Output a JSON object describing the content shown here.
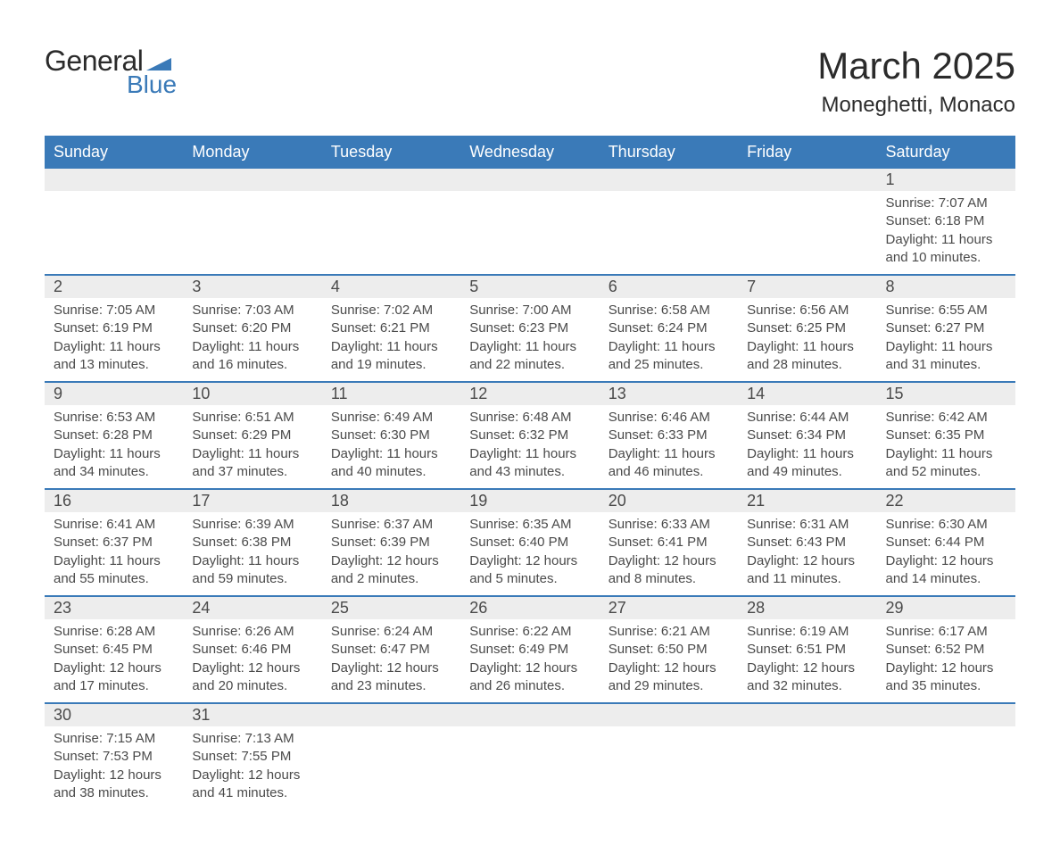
{
  "brand": {
    "word1": "General",
    "word2": "Blue",
    "shape_color": "#3a7ab8"
  },
  "title": "March 2025",
  "location": "Moneghetti, Monaco",
  "header_bg": "#3a7ab8",
  "header_text_color": "#ffffff",
  "row_stripe_bg": "#ededed",
  "border_color": "#3a7ab8",
  "text_color": "#4a4a4a",
  "days_of_week": [
    "Sunday",
    "Monday",
    "Tuesday",
    "Wednesday",
    "Thursday",
    "Friday",
    "Saturday"
  ],
  "weeks": [
    [
      null,
      null,
      null,
      null,
      null,
      null,
      {
        "n": "1",
        "sunrise": "Sunrise: 7:07 AM",
        "sunset": "Sunset: 6:18 PM",
        "daylight1": "Daylight: 11 hours",
        "daylight2": "and 10 minutes."
      }
    ],
    [
      {
        "n": "2",
        "sunrise": "Sunrise: 7:05 AM",
        "sunset": "Sunset: 6:19 PM",
        "daylight1": "Daylight: 11 hours",
        "daylight2": "and 13 minutes."
      },
      {
        "n": "3",
        "sunrise": "Sunrise: 7:03 AM",
        "sunset": "Sunset: 6:20 PM",
        "daylight1": "Daylight: 11 hours",
        "daylight2": "and 16 minutes."
      },
      {
        "n": "4",
        "sunrise": "Sunrise: 7:02 AM",
        "sunset": "Sunset: 6:21 PM",
        "daylight1": "Daylight: 11 hours",
        "daylight2": "and 19 minutes."
      },
      {
        "n": "5",
        "sunrise": "Sunrise: 7:00 AM",
        "sunset": "Sunset: 6:23 PM",
        "daylight1": "Daylight: 11 hours",
        "daylight2": "and 22 minutes."
      },
      {
        "n": "6",
        "sunrise": "Sunrise: 6:58 AM",
        "sunset": "Sunset: 6:24 PM",
        "daylight1": "Daylight: 11 hours",
        "daylight2": "and 25 minutes."
      },
      {
        "n": "7",
        "sunrise": "Sunrise: 6:56 AM",
        "sunset": "Sunset: 6:25 PM",
        "daylight1": "Daylight: 11 hours",
        "daylight2": "and 28 minutes."
      },
      {
        "n": "8",
        "sunrise": "Sunrise: 6:55 AM",
        "sunset": "Sunset: 6:27 PM",
        "daylight1": "Daylight: 11 hours",
        "daylight2": "and 31 minutes."
      }
    ],
    [
      {
        "n": "9",
        "sunrise": "Sunrise: 6:53 AM",
        "sunset": "Sunset: 6:28 PM",
        "daylight1": "Daylight: 11 hours",
        "daylight2": "and 34 minutes."
      },
      {
        "n": "10",
        "sunrise": "Sunrise: 6:51 AM",
        "sunset": "Sunset: 6:29 PM",
        "daylight1": "Daylight: 11 hours",
        "daylight2": "and 37 minutes."
      },
      {
        "n": "11",
        "sunrise": "Sunrise: 6:49 AM",
        "sunset": "Sunset: 6:30 PM",
        "daylight1": "Daylight: 11 hours",
        "daylight2": "and 40 minutes."
      },
      {
        "n": "12",
        "sunrise": "Sunrise: 6:48 AM",
        "sunset": "Sunset: 6:32 PM",
        "daylight1": "Daylight: 11 hours",
        "daylight2": "and 43 minutes."
      },
      {
        "n": "13",
        "sunrise": "Sunrise: 6:46 AM",
        "sunset": "Sunset: 6:33 PM",
        "daylight1": "Daylight: 11 hours",
        "daylight2": "and 46 minutes."
      },
      {
        "n": "14",
        "sunrise": "Sunrise: 6:44 AM",
        "sunset": "Sunset: 6:34 PM",
        "daylight1": "Daylight: 11 hours",
        "daylight2": "and 49 minutes."
      },
      {
        "n": "15",
        "sunrise": "Sunrise: 6:42 AM",
        "sunset": "Sunset: 6:35 PM",
        "daylight1": "Daylight: 11 hours",
        "daylight2": "and 52 minutes."
      }
    ],
    [
      {
        "n": "16",
        "sunrise": "Sunrise: 6:41 AM",
        "sunset": "Sunset: 6:37 PM",
        "daylight1": "Daylight: 11 hours",
        "daylight2": "and 55 minutes."
      },
      {
        "n": "17",
        "sunrise": "Sunrise: 6:39 AM",
        "sunset": "Sunset: 6:38 PM",
        "daylight1": "Daylight: 11 hours",
        "daylight2": "and 59 minutes."
      },
      {
        "n": "18",
        "sunrise": "Sunrise: 6:37 AM",
        "sunset": "Sunset: 6:39 PM",
        "daylight1": "Daylight: 12 hours",
        "daylight2": "and 2 minutes."
      },
      {
        "n": "19",
        "sunrise": "Sunrise: 6:35 AM",
        "sunset": "Sunset: 6:40 PM",
        "daylight1": "Daylight: 12 hours",
        "daylight2": "and 5 minutes."
      },
      {
        "n": "20",
        "sunrise": "Sunrise: 6:33 AM",
        "sunset": "Sunset: 6:41 PM",
        "daylight1": "Daylight: 12 hours",
        "daylight2": "and 8 minutes."
      },
      {
        "n": "21",
        "sunrise": "Sunrise: 6:31 AM",
        "sunset": "Sunset: 6:43 PM",
        "daylight1": "Daylight: 12 hours",
        "daylight2": "and 11 minutes."
      },
      {
        "n": "22",
        "sunrise": "Sunrise: 6:30 AM",
        "sunset": "Sunset: 6:44 PM",
        "daylight1": "Daylight: 12 hours",
        "daylight2": "and 14 minutes."
      }
    ],
    [
      {
        "n": "23",
        "sunrise": "Sunrise: 6:28 AM",
        "sunset": "Sunset: 6:45 PM",
        "daylight1": "Daylight: 12 hours",
        "daylight2": "and 17 minutes."
      },
      {
        "n": "24",
        "sunrise": "Sunrise: 6:26 AM",
        "sunset": "Sunset: 6:46 PM",
        "daylight1": "Daylight: 12 hours",
        "daylight2": "and 20 minutes."
      },
      {
        "n": "25",
        "sunrise": "Sunrise: 6:24 AM",
        "sunset": "Sunset: 6:47 PM",
        "daylight1": "Daylight: 12 hours",
        "daylight2": "and 23 minutes."
      },
      {
        "n": "26",
        "sunrise": "Sunrise: 6:22 AM",
        "sunset": "Sunset: 6:49 PM",
        "daylight1": "Daylight: 12 hours",
        "daylight2": "and 26 minutes."
      },
      {
        "n": "27",
        "sunrise": "Sunrise: 6:21 AM",
        "sunset": "Sunset: 6:50 PM",
        "daylight1": "Daylight: 12 hours",
        "daylight2": "and 29 minutes."
      },
      {
        "n": "28",
        "sunrise": "Sunrise: 6:19 AM",
        "sunset": "Sunset: 6:51 PM",
        "daylight1": "Daylight: 12 hours",
        "daylight2": "and 32 minutes."
      },
      {
        "n": "29",
        "sunrise": "Sunrise: 6:17 AM",
        "sunset": "Sunset: 6:52 PM",
        "daylight1": "Daylight: 12 hours",
        "daylight2": "and 35 minutes."
      }
    ],
    [
      {
        "n": "30",
        "sunrise": "Sunrise: 7:15 AM",
        "sunset": "Sunset: 7:53 PM",
        "daylight1": "Daylight: 12 hours",
        "daylight2": "and 38 minutes."
      },
      {
        "n": "31",
        "sunrise": "Sunrise: 7:13 AM",
        "sunset": "Sunset: 7:55 PM",
        "daylight1": "Daylight: 12 hours",
        "daylight2": "and 41 minutes."
      },
      null,
      null,
      null,
      null,
      null
    ]
  ]
}
